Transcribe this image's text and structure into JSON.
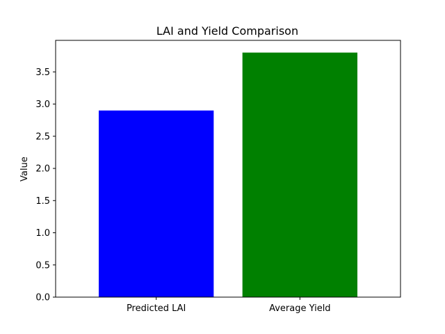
{
  "chart_data": {
    "type": "bar",
    "title": "LAI and Yield Comparison",
    "xlabel": "",
    "ylabel": "Value",
    "categories": [
      "Predicted LAI",
      "Average Yield"
    ],
    "values": [
      2.9,
      3.8
    ],
    "colors": [
      "#0000ff",
      "#008000"
    ],
    "ylim": [
      0,
      3.99
    ],
    "yticks": [
      0.0,
      0.5,
      1.0,
      1.5,
      2.0,
      2.5,
      3.0,
      3.5
    ],
    "ytick_labels": [
      "0.0",
      "0.5",
      "1.0",
      "1.5",
      "2.0",
      "2.5",
      "3.0",
      "3.5"
    ],
    "grid": false,
    "legend": "none"
  }
}
